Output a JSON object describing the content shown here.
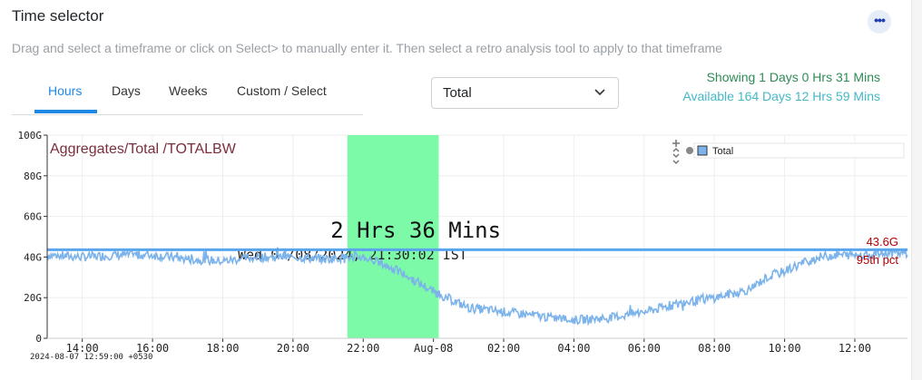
{
  "header": {
    "title": "Time selector",
    "menu_icon": "ellipsis-icon"
  },
  "description": "Drag and select a timeframe or click on Select> to manually enter it. Then select a retro analysis tool to apply to that timeframe",
  "tabs": [
    {
      "label": "Hours",
      "active": true
    },
    {
      "label": "Days",
      "active": false
    },
    {
      "label": "Weeks",
      "active": false
    },
    {
      "label": "Custom / Select",
      "active": false
    }
  ],
  "metric_select": {
    "value": "Total"
  },
  "status": {
    "showing": "Showing 1 Days 0 Hrs 31 Mins",
    "available": "Available 164 Days 12 Hrs 59 Mins"
  },
  "colors": {
    "accent": "#1e88e5",
    "series": "#7bb3ea",
    "selection": "#7dfaa8",
    "pct_line": "#5aa6ee",
    "pct_label": "#b00000",
    "chart_title": "#7a2e3c"
  },
  "chart_data": {
    "type": "line",
    "title": "Aggregates/Total /TOTALBW",
    "y_ticks": [
      "0",
      "20G",
      "40G",
      "60G",
      "80G",
      "100G"
    ],
    "y_range": [
      0,
      100
    ],
    "x_ticks": [
      "14:00",
      "16:00",
      "18:00",
      "20:00",
      "22:00",
      "Aug-08",
      "02:00",
      "04:00",
      "06:00",
      "08:00",
      "10:00",
      "12:00"
    ],
    "x_range_hours": [
      13.0,
      37.5
    ],
    "legend": {
      "label": "Total",
      "position": "top-right"
    },
    "timestamp_label": "2024-08-07 12:59:00 +0530",
    "overlay_date_text": "Wed 07/08/2024, 21:30:02 IST",
    "selection": {
      "start_hour": 21.55,
      "end_hour": 24.15,
      "label": "2 Hrs 36 Mins"
    },
    "percentile": {
      "value": 43.6,
      "value_label": "43.6G",
      "label": "95th pct"
    },
    "series": [
      {
        "name": "Total",
        "x": [
          13.0,
          14.0,
          15.0,
          16.0,
          17.0,
          18.0,
          19.0,
          20.0,
          21.0,
          21.5,
          22.0,
          22.5,
          23.0,
          23.5,
          24.0,
          24.5,
          25.0,
          26.0,
          27.0,
          28.0,
          29.0,
          30.0,
          31.0,
          32.0,
          33.0,
          33.5,
          34.0,
          34.5,
          35.0,
          35.5,
          36.0,
          37.0,
          37.5
        ],
        "values": [
          41,
          40,
          41,
          41,
          39,
          38,
          40,
          40,
          39,
          40,
          40,
          37,
          33,
          28,
          23,
          19,
          15,
          13,
          11,
          9,
          10,
          13,
          17,
          20,
          24,
          30,
          33,
          37,
          40,
          41,
          41,
          42,
          42
        ]
      }
    ]
  }
}
